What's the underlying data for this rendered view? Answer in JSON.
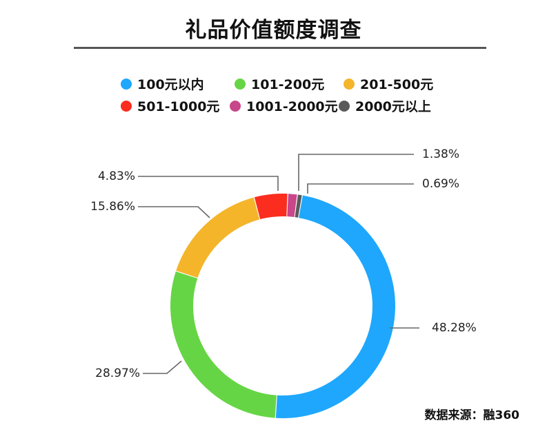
{
  "title": "礼品价值额度调查",
  "source": "数据来源：融360",
  "chart_data": {
    "type": "pie",
    "style": "donut",
    "legend_position": "top",
    "categories": [
      "100元以内",
      "101-200元",
      "201-500元",
      "501-1000元",
      "1001-2000元",
      "2000元以上"
    ],
    "values": [
      48.28,
      28.97,
      15.86,
      4.83,
      1.38,
      0.69
    ],
    "labels": [
      "48.28%",
      "28.97%",
      "15.86%",
      "4.83%",
      "1.38%",
      "0.69%"
    ],
    "colors": [
      "#1ea7fd",
      "#66d545",
      "#f4b52b",
      "#fb2d1e",
      "#c8468a",
      "#5a5a5a"
    ]
  }
}
